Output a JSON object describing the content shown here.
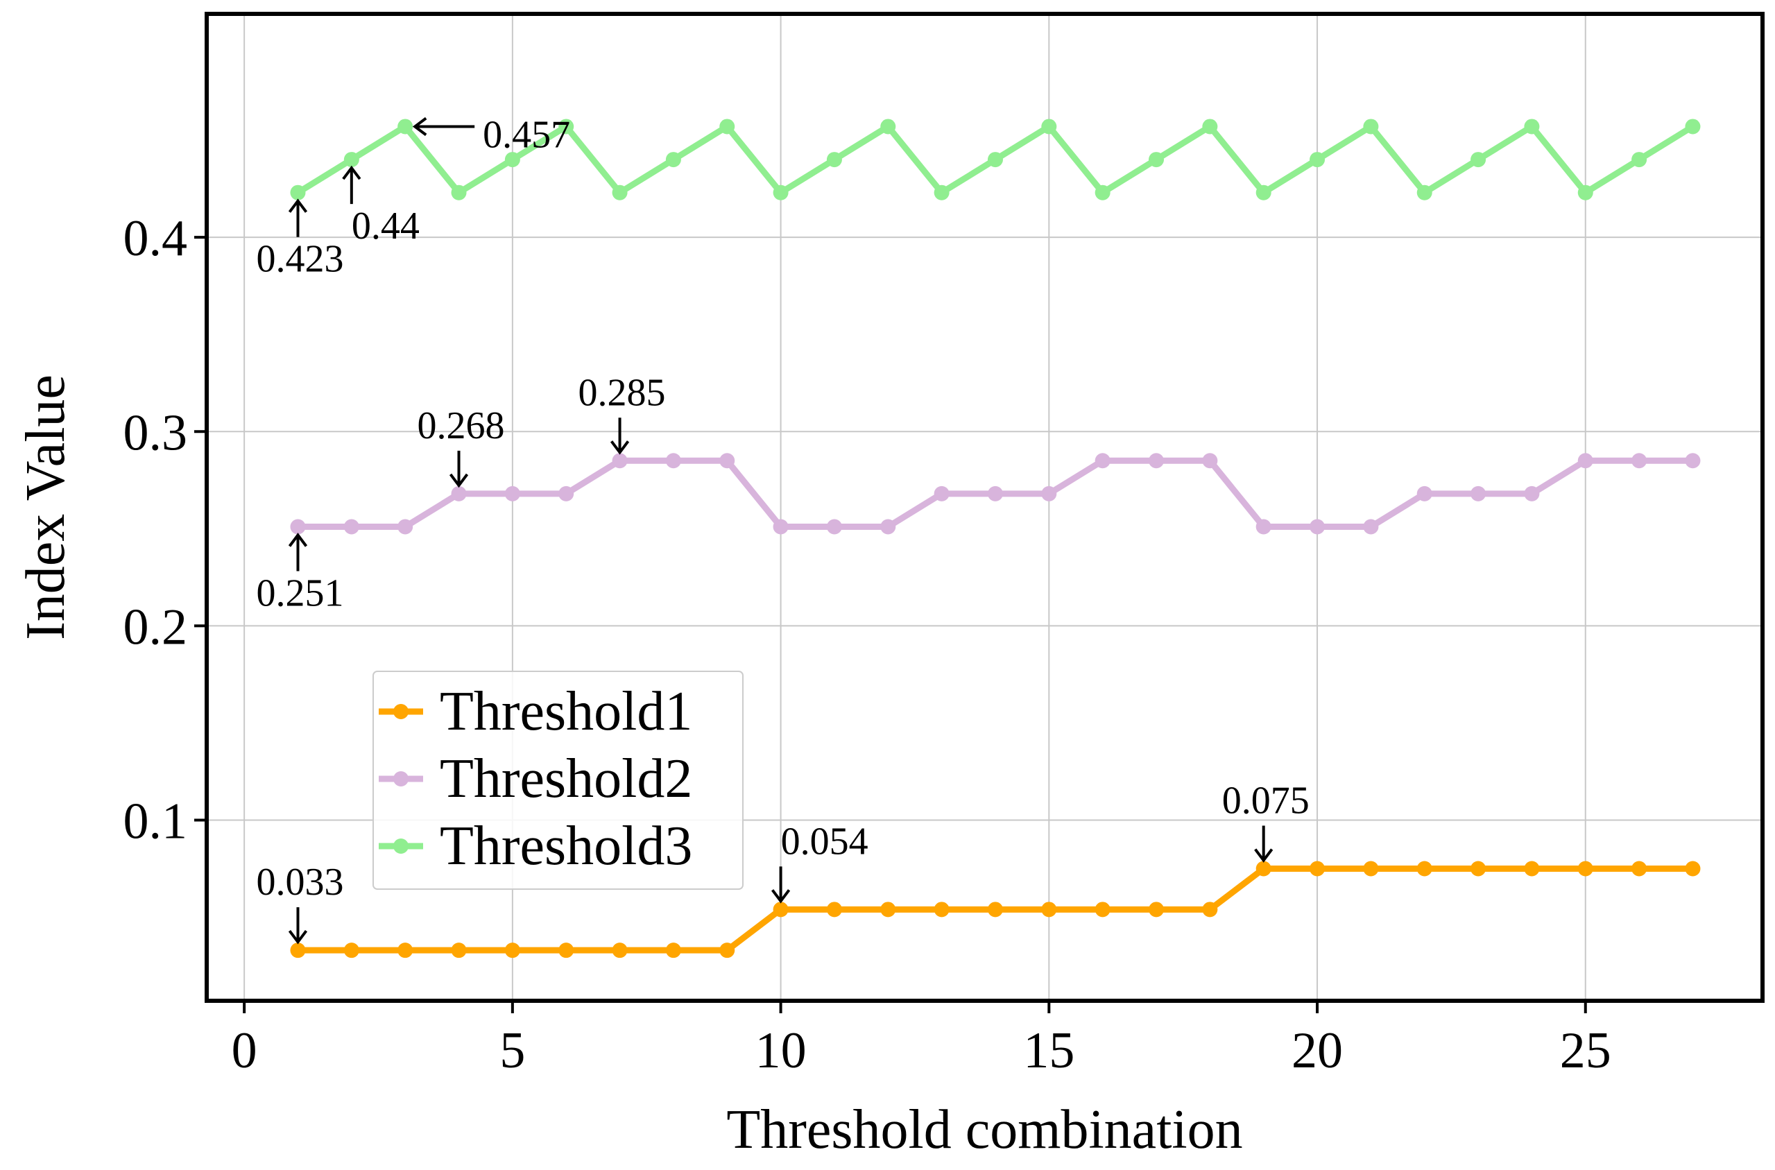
{
  "chart_data": {
    "type": "line",
    "title": "",
    "xlabel": "Threshold combination",
    "ylabel": "Index Value",
    "xlim": [
      -0.7,
      28.3
    ],
    "ylim": [
      0.007,
      0.515
    ],
    "xticks": [
      0,
      5,
      10,
      15,
      20,
      25
    ],
    "xtick_labels": [
      "0",
      "5",
      "10",
      "15",
      "20",
      "25"
    ],
    "yticks": [
      0.1,
      0.2,
      0.3,
      0.4
    ],
    "ytick_labels": [
      "0.1",
      "0.2",
      "0.3",
      "0.4"
    ],
    "grid": true,
    "legend_position": "lower-left",
    "x": [
      1,
      2,
      3,
      4,
      5,
      6,
      7,
      8,
      9,
      10,
      11,
      12,
      13,
      14,
      15,
      16,
      17,
      18,
      19,
      20,
      21,
      22,
      23,
      24,
      25,
      26,
      27
    ],
    "series": [
      {
        "name": "Threshold1",
        "color": "#FFA500",
        "values": [
          0.033,
          0.033,
          0.033,
          0.033,
          0.033,
          0.033,
          0.033,
          0.033,
          0.033,
          0.054,
          0.054,
          0.054,
          0.054,
          0.054,
          0.054,
          0.054,
          0.054,
          0.054,
          0.075,
          0.075,
          0.075,
          0.075,
          0.075,
          0.075,
          0.075,
          0.075,
          0.075
        ]
      },
      {
        "name": "Threshold2",
        "color": "#D8B4DC",
        "values": [
          0.251,
          0.251,
          0.251,
          0.268,
          0.268,
          0.268,
          0.285,
          0.285,
          0.285,
          0.251,
          0.251,
          0.251,
          0.268,
          0.268,
          0.268,
          0.285,
          0.285,
          0.285,
          0.251,
          0.251,
          0.251,
          0.268,
          0.268,
          0.268,
          0.285,
          0.285,
          0.285
        ]
      },
      {
        "name": "Threshold3",
        "color": "#90EE90",
        "values": [
          0.423,
          0.44,
          0.457,
          0.423,
          0.44,
          0.457,
          0.423,
          0.44,
          0.457,
          0.423,
          0.44,
          0.457,
          0.423,
          0.44,
          0.457,
          0.423,
          0.44,
          0.457,
          0.423,
          0.44,
          0.457,
          0.423,
          0.44,
          0.457,
          0.423,
          0.44,
          0.457
        ]
      }
    ],
    "annotations": [
      {
        "text": "0.033",
        "x": 1,
        "y": 0.033,
        "arrow": "down"
      },
      {
        "text": "0.054",
        "x": 10,
        "y": 0.054,
        "arrow": "down"
      },
      {
        "text": "0.075",
        "x": 19,
        "y": 0.075,
        "arrow": "down"
      },
      {
        "text": "0.251",
        "x": 1,
        "y": 0.251,
        "arrow": "up"
      },
      {
        "text": "0.268",
        "x": 4,
        "y": 0.268,
        "arrow": "down"
      },
      {
        "text": "0.285",
        "x": 7,
        "y": 0.285,
        "arrow": "down"
      },
      {
        "text": "0.423",
        "x": 1,
        "y": 0.423,
        "arrow": "up"
      },
      {
        "text": "0.44",
        "x": 2,
        "y": 0.44,
        "arrow": "up"
      },
      {
        "text": "0.457",
        "x": 3,
        "y": 0.457,
        "arrow": "left"
      }
    ]
  }
}
